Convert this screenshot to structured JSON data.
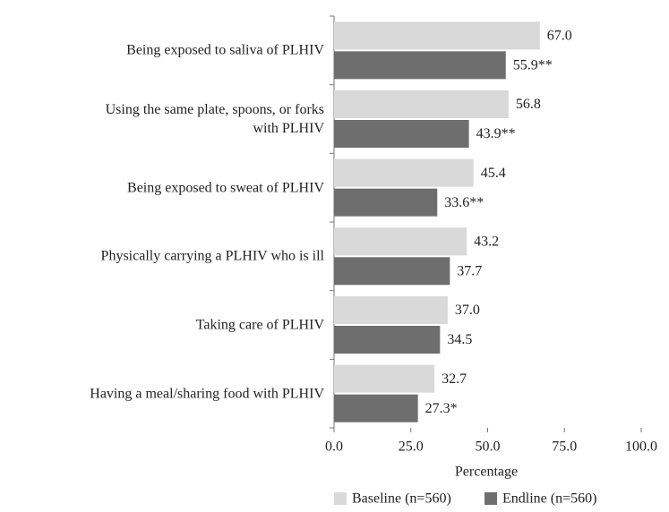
{
  "chart_data": {
    "type": "bar",
    "orientation": "horizontal",
    "xlabel": "Percentage",
    "categories": [
      "Being exposed to saliva of PLHIV",
      "Using the same plate, spoons, or forks\nwith PLHIV",
      "Being exposed to sweat of PLHIV",
      "Physically carrying a PLHIV who is ill",
      "Taking care of PLHIV",
      "Having a meal/sharing food with PLHIV"
    ],
    "series": [
      {
        "name": "Baseline (n=560)",
        "color": "#d9d9d9",
        "values": [
          67.0,
          56.8,
          45.4,
          43.2,
          37.0,
          32.7
        ],
        "value_labels": [
          "67.0",
          "56.8",
          "45.4",
          "43.2",
          "37.0",
          "32.7"
        ]
      },
      {
        "name": "Endline (n=560)",
        "color": "#6e6e6e",
        "values": [
          55.9,
          43.9,
          33.6,
          37.7,
          34.5,
          27.3
        ],
        "value_labels": [
          "55.9**",
          "43.9**",
          "33.6**",
          "37.7",
          "34.5",
          "27.3*"
        ]
      }
    ],
    "xlim": [
      0,
      100
    ],
    "xticks": [
      {
        "value": 0,
        "label": "0.0"
      },
      {
        "value": 25,
        "label": "25.0"
      },
      {
        "value": 50,
        "label": "50.0"
      },
      {
        "value": 75,
        "label": "75.0"
      },
      {
        "value": 100,
        "label": "100.0"
      }
    ],
    "legend": "bottom"
  }
}
